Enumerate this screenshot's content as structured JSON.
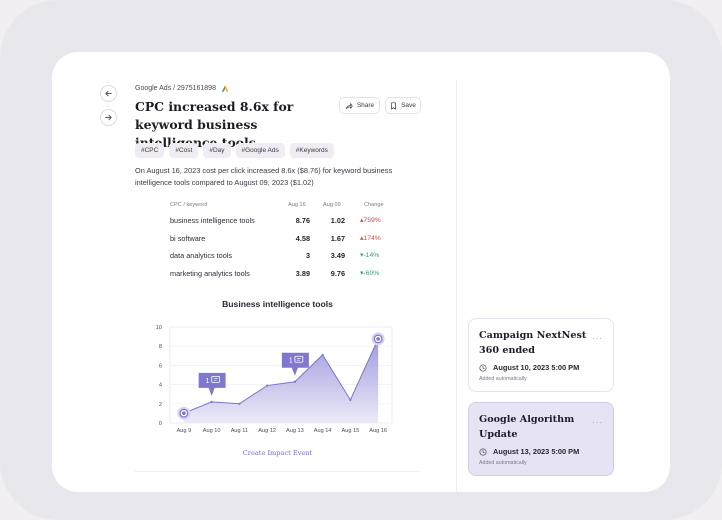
{
  "breadcrumb": {
    "text": "Google Ads / 2975161898"
  },
  "header": {
    "title": "CPC increased 8.6x for keyword business intelligence tools",
    "share_label": "Share",
    "save_label": "Save"
  },
  "tags": [
    "#CPC",
    "#Cost",
    "#Day",
    "#Google Ads",
    "#Keywords"
  ],
  "description": "On August 16, 2023 cost per click increased 8.6x ($8.76) for keyword business intelligence tools compared to August 09, 2023 ($1.02)",
  "table": {
    "headers": [
      "CPC / keyword",
      "Aug 16",
      "Aug 09",
      "Change"
    ],
    "rows": [
      {
        "keyword": "business intelligence tools",
        "aug16": "8.76",
        "aug09": "1.02",
        "change": "759%",
        "dir": "up"
      },
      {
        "keyword": "bi software",
        "aug16": "4.58",
        "aug09": "1.67",
        "change": "174%",
        "dir": "up"
      },
      {
        "keyword": "data analytics tools",
        "aug16": "3",
        "aug09": "3.49",
        "change": "-14%",
        "dir": "down"
      },
      {
        "keyword": "marketing analytics tools",
        "aug16": "3.89",
        "aug09": "9.76",
        "change": "-60%",
        "dir": "down"
      }
    ]
  },
  "chart_data": {
    "type": "area",
    "title": "Business intelligence tools",
    "categories": [
      "Aug 9",
      "Aug 10",
      "Aug 11",
      "Aug 12",
      "Aug 13",
      "Aug 14",
      "Aug 15",
      "Aug 16"
    ],
    "values": [
      1.02,
      2.2,
      2.0,
      3.9,
      4.3,
      7.1,
      2.4,
      8.76
    ],
    "ylim": [
      0,
      10
    ],
    "yticks": [
      "0",
      "2",
      "4",
      "6",
      "8",
      "10"
    ],
    "annotations": [
      {
        "label": "1",
        "category": "Aug 10"
      },
      {
        "label": "1",
        "category": "Aug 13"
      }
    ],
    "highlighted_points": [
      "Aug 9",
      "Aug 16"
    ],
    "colors": {
      "line": "#7b74c9",
      "fill_top": "#8f88d8",
      "fill_bottom": "#e9e7f7",
      "badge": "#8078cf"
    }
  },
  "link_label": "Create Impact Event",
  "sidebar": {
    "cards": [
      {
        "title": "Campaign NextNest 360 ended",
        "date": "August 10, 2023 5:00 PM",
        "note": "Added automatically",
        "more": "···"
      },
      {
        "title": "Google Algorithm Update",
        "date": "August 13, 2023 5:00 PM",
        "note": "Added automatically",
        "more": "···"
      }
    ]
  }
}
